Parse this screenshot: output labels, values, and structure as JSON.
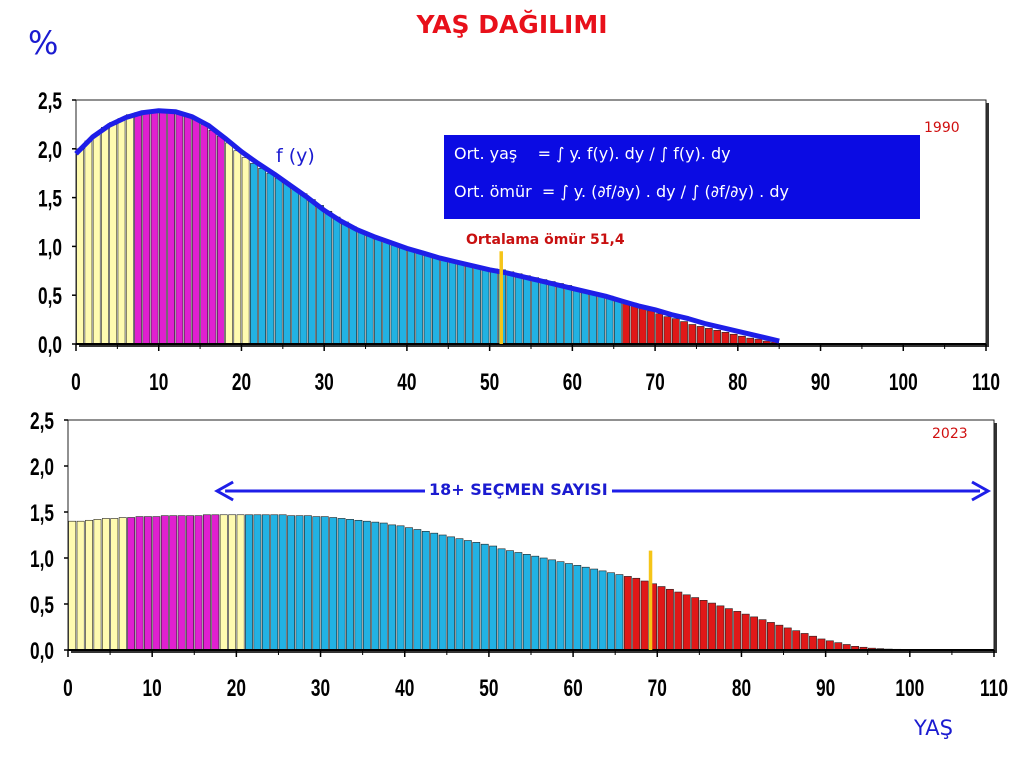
{
  "title": "YAŞ DAĞILIMI",
  "y_unit": "%",
  "x_unit": "YAŞ",
  "colors": {
    "yellow": "#fffbb0",
    "magenta": "#e020d0",
    "cyan": "#22b2e3",
    "red": "#e01818",
    "curve": "#1e1ee8",
    "marker": "#f5c518"
  },
  "chart_data": [
    {
      "type": "bar",
      "year_label": "1990",
      "xlim": [
        0,
        110
      ],
      "ylim": [
        0,
        2.5
      ],
      "x_ticks": [
        "0",
        "10",
        "20",
        "30",
        "40",
        "50",
        "60",
        "70",
        "80",
        "90",
        "100",
        "110"
      ],
      "y_ticks": [
        "0,0",
        "0,5",
        "1,0",
        "1,5",
        "2,0",
        "2,5"
      ],
      "color_bands": [
        {
          "from": 0,
          "to": 7,
          "color": "yellow"
        },
        {
          "from": 7,
          "to": 18,
          "color": "magenta"
        },
        {
          "from": 18,
          "to": 21,
          "color": "yellow"
        },
        {
          "from": 21,
          "to": 66,
          "color": "cyan"
        },
        {
          "from": 66,
          "to": 85,
          "color": "red"
        }
      ],
      "x": [
        0,
        1,
        2,
        3,
        4,
        5,
        6,
        7,
        8,
        9,
        10,
        11,
        12,
        13,
        14,
        15,
        16,
        17,
        18,
        19,
        20,
        21,
        22,
        23,
        24,
        25,
        26,
        27,
        28,
        29,
        30,
        31,
        32,
        33,
        34,
        35,
        36,
        37,
        38,
        39,
        40,
        41,
        42,
        43,
        44,
        45,
        46,
        47,
        48,
        49,
        50,
        51,
        52,
        53,
        54,
        55,
        56,
        57,
        58,
        59,
        60,
        61,
        62,
        63,
        64,
        65,
        66,
        67,
        68,
        69,
        70,
        71,
        72,
        73,
        74,
        75,
        76,
        77,
        78,
        79,
        80,
        81,
        82,
        83,
        84
      ],
      "values": [
        2.0,
        2.08,
        2.15,
        2.22,
        2.27,
        2.31,
        2.35,
        2.37,
        2.39,
        2.4,
        2.4,
        2.39,
        2.37,
        2.34,
        2.3,
        2.25,
        2.19,
        2.13,
        2.06,
        1.98,
        1.91,
        1.85,
        1.8,
        1.75,
        1.7,
        1.65,
        1.59,
        1.54,
        1.48,
        1.42,
        1.36,
        1.3,
        1.25,
        1.2,
        1.16,
        1.12,
        1.09,
        1.06,
        1.03,
        1.0,
        0.97,
        0.95,
        0.92,
        0.9,
        0.88,
        0.86,
        0.84,
        0.82,
        0.8,
        0.78,
        0.77,
        0.76,
        0.74,
        0.72,
        0.7,
        0.68,
        0.66,
        0.64,
        0.62,
        0.6,
        0.57,
        0.55,
        0.53,
        0.51,
        0.49,
        0.46,
        0.43,
        0.4,
        0.37,
        0.34,
        0.31,
        0.28,
        0.26,
        0.23,
        0.2,
        0.18,
        0.16,
        0.14,
        0.12,
        0.1,
        0.08,
        0.06,
        0.05,
        0.03,
        0.02
      ],
      "curve_label": "f (y)",
      "curve": {
        "x": [
          0,
          2,
          4,
          6,
          8,
          10,
          12,
          14,
          16,
          18,
          20,
          22,
          24,
          26,
          28,
          30,
          32,
          34,
          36,
          38,
          40,
          42,
          44,
          46,
          48,
          50,
          52,
          54,
          56,
          58,
          60,
          62,
          64,
          66,
          68,
          70,
          72,
          74,
          76,
          78,
          80,
          82,
          84,
          85
        ],
        "y": [
          1.95,
          2.12,
          2.24,
          2.32,
          2.37,
          2.39,
          2.38,
          2.33,
          2.24,
          2.11,
          1.97,
          1.85,
          1.74,
          1.62,
          1.5,
          1.37,
          1.26,
          1.17,
          1.1,
          1.04,
          0.98,
          0.93,
          0.88,
          0.84,
          0.8,
          0.76,
          0.73,
          0.69,
          0.65,
          0.61,
          0.57,
          0.53,
          0.49,
          0.44,
          0.39,
          0.35,
          0.3,
          0.26,
          0.21,
          0.17,
          0.13,
          0.09,
          0.05,
          0.03
        ]
      },
      "mean_marker": {
        "x": 51.4,
        "y_top": 0.95,
        "label": "Ortalama ömür 51,4"
      },
      "formula_lines": [
        "Ort. yaş    = ∫ y. f(y). dy / ∫ f(y). dy",
        "Ort. ömür  = ∫ y. (∂f/∂y) . dy / ∫ (∂f/∂y) . dy"
      ]
    },
    {
      "type": "bar",
      "year_label": "2023",
      "xlim": [
        0,
        110
      ],
      "ylim": [
        0,
        2.5
      ],
      "x_ticks": [
        "0",
        "10",
        "20",
        "30",
        "40",
        "50",
        "60",
        "70",
        "80",
        "90",
        "100",
        "110"
      ],
      "y_ticks": [
        "0,0",
        "0,5",
        "1,0",
        "1,5",
        "2,0",
        "2,5"
      ],
      "color_bands": [
        {
          "from": 0,
          "to": 7,
          "color": "yellow"
        },
        {
          "from": 7,
          "to": 18,
          "color": "magenta"
        },
        {
          "from": 18,
          "to": 21,
          "color": "yellow"
        },
        {
          "from": 21,
          "to": 66,
          "color": "cyan"
        },
        {
          "from": 66,
          "to": 110,
          "color": "red"
        }
      ],
      "x": [
        0,
        1,
        2,
        3,
        4,
        5,
        6,
        7,
        8,
        9,
        10,
        11,
        12,
        13,
        14,
        15,
        16,
        17,
        18,
        19,
        20,
        21,
        22,
        23,
        24,
        25,
        26,
        27,
        28,
        29,
        30,
        31,
        32,
        33,
        34,
        35,
        36,
        37,
        38,
        39,
        40,
        41,
        42,
        43,
        44,
        45,
        46,
        47,
        48,
        49,
        50,
        51,
        52,
        53,
        54,
        55,
        56,
        57,
        58,
        59,
        60,
        61,
        62,
        63,
        64,
        65,
        66,
        67,
        68,
        69,
        70,
        71,
        72,
        73,
        74,
        75,
        76,
        77,
        78,
        79,
        80,
        81,
        82,
        83,
        84,
        85,
        86,
        87,
        88,
        89,
        90,
        91,
        92,
        93,
        94,
        95,
        96,
        97,
        98,
        99,
        100,
        101,
        102,
        103,
        104,
        105,
        106,
        107,
        108,
        109
      ],
      "values": [
        1.4,
        1.4,
        1.41,
        1.42,
        1.43,
        1.43,
        1.44,
        1.44,
        1.45,
        1.45,
        1.45,
        1.46,
        1.46,
        1.46,
        1.46,
        1.46,
        1.47,
        1.47,
        1.47,
        1.47,
        1.47,
        1.47,
        1.47,
        1.47,
        1.47,
        1.47,
        1.46,
        1.46,
        1.46,
        1.45,
        1.45,
        1.44,
        1.43,
        1.42,
        1.41,
        1.4,
        1.39,
        1.38,
        1.36,
        1.35,
        1.33,
        1.31,
        1.29,
        1.27,
        1.25,
        1.23,
        1.21,
        1.19,
        1.17,
        1.15,
        1.13,
        1.1,
        1.08,
        1.06,
        1.04,
        1.02,
        1.0,
        0.98,
        0.96,
        0.94,
        0.92,
        0.9,
        0.88,
        0.86,
        0.84,
        0.82,
        0.8,
        0.78,
        0.75,
        0.72,
        0.69,
        0.66,
        0.63,
        0.6,
        0.57,
        0.54,
        0.51,
        0.48,
        0.45,
        0.42,
        0.39,
        0.36,
        0.33,
        0.3,
        0.27,
        0.24,
        0.21,
        0.18,
        0.15,
        0.12,
        0.1,
        0.08,
        0.06,
        0.04,
        0.03,
        0.02,
        0.015,
        0.01,
        0.008,
        0.005,
        0.003,
        0,
        0,
        0,
        0,
        0,
        0,
        0,
        0,
        0
      ],
      "mean_marker": {
        "x": 69.2,
        "y_top": 1.08
      },
      "arrow_range": [
        17,
        110
      ],
      "arrow_label": "18+ SEÇMEN SAYISI"
    }
  ]
}
